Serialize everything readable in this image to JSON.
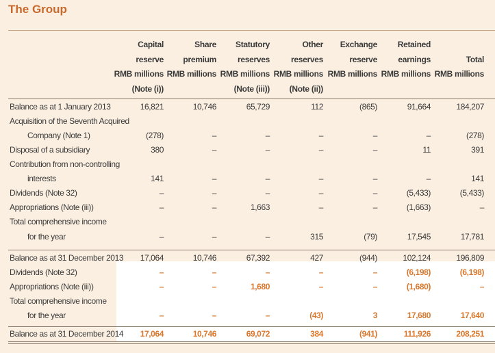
{
  "title": "The Group",
  "headers": [
    {
      "lines": [
        "Capital",
        "reserve",
        "RMB millions",
        "(Note (i))"
      ]
    },
    {
      "lines": [
        "Share",
        "premium",
        "RMB millions",
        ""
      ]
    },
    {
      "lines": [
        "Statutory",
        "reserves",
        "RMB millions",
        "(Note (iii))"
      ]
    },
    {
      "lines": [
        "Other",
        "reserves",
        "RMB millions",
        "(Note (ii))"
      ]
    },
    {
      "lines": [
        "Exchange",
        "reserve",
        "RMB millions",
        ""
      ]
    },
    {
      "lines": [
        "Retained",
        "earnings",
        "RMB millions",
        ""
      ]
    },
    {
      "lines": [
        "",
        "Total",
        "RMB millions",
        ""
      ]
    }
  ],
  "rows": [
    {
      "label": "Balance as at 1 January 2013",
      "indent": false,
      "values": [
        "16,821",
        "10,746",
        "65,729",
        "112",
        "(865)",
        "91,664",
        "184,207"
      ]
    },
    {
      "label": "Acquisition of the Seventh Acquired",
      "indent": false,
      "values": [
        "",
        "",
        "",
        "",
        "",
        "",
        ""
      ]
    },
    {
      "label": "Company (Note 1)",
      "indent": true,
      "values": [
        "(278)",
        "–",
        "–",
        "–",
        "–",
        "–",
        "(278)"
      ]
    },
    {
      "label": "Disposal of a subsidiary",
      "indent": false,
      "values": [
        "380",
        "–",
        "–",
        "–",
        "–",
        "11",
        "391"
      ]
    },
    {
      "label": "Contribution from non-controlling",
      "indent": false,
      "values": [
        "",
        "",
        "",
        "",
        "",
        "",
        ""
      ]
    },
    {
      "label": "interests",
      "indent": true,
      "values": [
        "141",
        "–",
        "–",
        "–",
        "–",
        "–",
        "141"
      ]
    },
    {
      "label": "Dividends (Note 32)",
      "indent": false,
      "values": [
        "–",
        "–",
        "–",
        "–",
        "–",
        "(5,433)",
        "(5,433)"
      ]
    },
    {
      "label": "Appropriations (Note (iii))",
      "indent": false,
      "values": [
        "–",
        "–",
        "1,663",
        "–",
        "–",
        "(1,663)",
        "–"
      ]
    },
    {
      "label": "Total comprehensive income",
      "indent": false,
      "values": [
        "",
        "",
        "",
        "",
        "",
        "",
        ""
      ]
    },
    {
      "label": "for the year",
      "indent": true,
      "values": [
        "–",
        "–",
        "–",
        "315",
        "(79)",
        "17,545",
        "17,781"
      ]
    },
    {
      "label": "Balance as at 31 December 2013",
      "indent": false,
      "values": [
        "17,064",
        "10,746",
        "67,392",
        "427",
        "(944)",
        "102,124",
        "196,809"
      ]
    },
    {
      "label": "Dividends (Note 32)",
      "indent": false,
      "values": [
        "–",
        "–",
        "–",
        "–",
        "–",
        "(6,198)",
        "(6,198)"
      ]
    },
    {
      "label": "Appropriations (Note (iii))",
      "indent": false,
      "values": [
        "–",
        "–",
        "1,680",
        "–",
        "–",
        "(1,680)",
        "–"
      ]
    },
    {
      "label": "Total comprehensive income",
      "indent": false,
      "values": [
        "",
        "",
        "",
        "",
        "",
        "",
        ""
      ]
    },
    {
      "label": "for the year",
      "indent": true,
      "values": [
        "–",
        "–",
        "–",
        "(43)",
        "3",
        "17,680",
        "17,640"
      ]
    },
    {
      "label": "Balance as at 31 December 2014",
      "indent": false,
      "values": [
        "17,064",
        "10,746",
        "69,072",
        "384",
        "(941)",
        "111,926",
        "208,251"
      ]
    }
  ],
  "colors": {
    "accent": "#d9782d",
    "title": "#c86a2d",
    "background": "#fbefe1"
  }
}
